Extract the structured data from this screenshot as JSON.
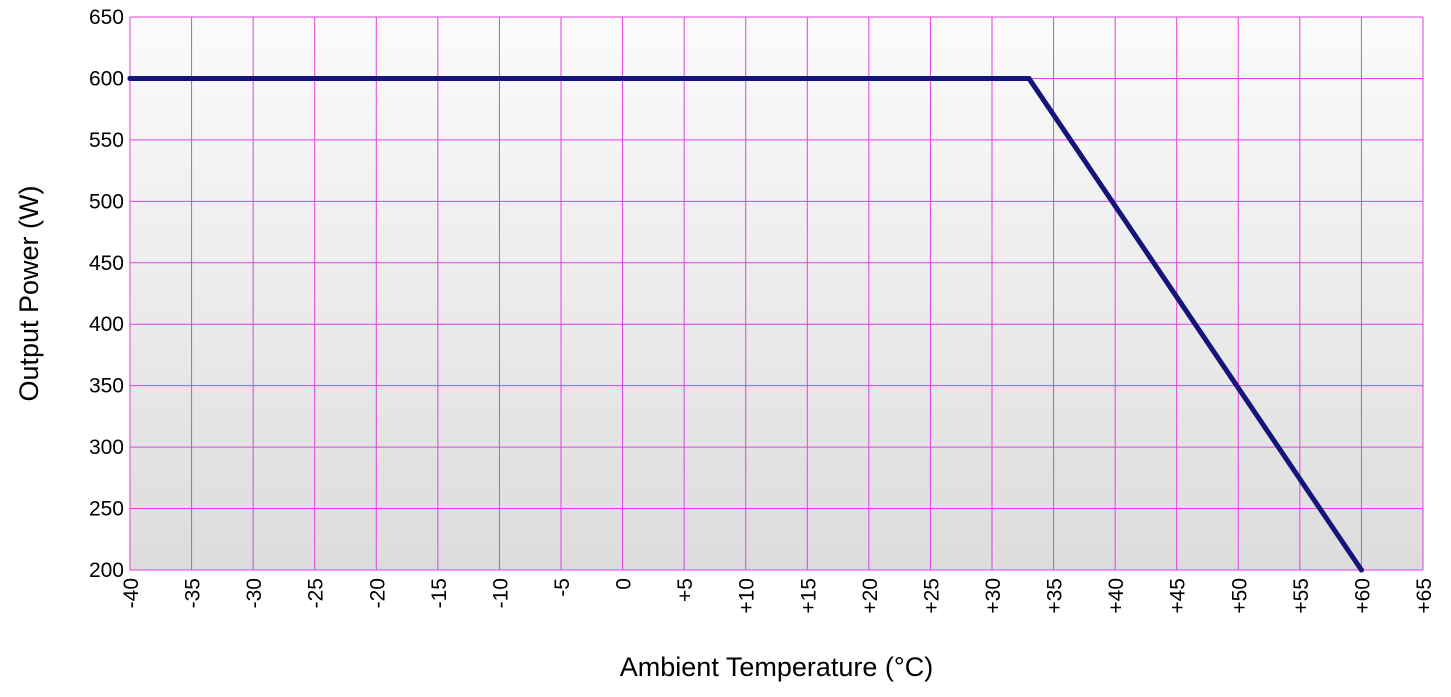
{
  "chart_data": {
    "type": "line",
    "xlabel": "Ambient Temperature (°C)",
    "ylabel": "Output Power (W)",
    "xlim": [
      -40,
      65
    ],
    "ylim": [
      200,
      650
    ],
    "x_ticks": [
      {
        "value": -40,
        "label": "-40"
      },
      {
        "value": -35,
        "label": "-35"
      },
      {
        "value": -30,
        "label": "-30"
      },
      {
        "value": -25,
        "label": "-25"
      },
      {
        "value": -20,
        "label": "-20"
      },
      {
        "value": -15,
        "label": "-15"
      },
      {
        "value": -10,
        "label": "-10"
      },
      {
        "value": -5,
        "label": "-5"
      },
      {
        "value": 0,
        "label": "0"
      },
      {
        "value": 5,
        "label": "+5"
      },
      {
        "value": 10,
        "label": "+10"
      },
      {
        "value": 15,
        "label": "+15"
      },
      {
        "value": 20,
        "label": "+20"
      },
      {
        "value": 25,
        "label": "+25"
      },
      {
        "value": 30,
        "label": "+30"
      },
      {
        "value": 35,
        "label": "+35"
      },
      {
        "value": 40,
        "label": "+40"
      },
      {
        "value": 45,
        "label": "+45"
      },
      {
        "value": 50,
        "label": "+50"
      },
      {
        "value": 55,
        "label": "+55"
      },
      {
        "value": 60,
        "label": "+60"
      },
      {
        "value": 65,
        "label": "+65"
      }
    ],
    "y_ticks": [
      {
        "value": 200,
        "label": "200"
      },
      {
        "value": 250,
        "label": "250"
      },
      {
        "value": 300,
        "label": "300"
      },
      {
        "value": 350,
        "label": "350"
      },
      {
        "value": 400,
        "label": "400"
      },
      {
        "value": 450,
        "label": "450"
      },
      {
        "value": 500,
        "label": "500"
      },
      {
        "value": 550,
        "label": "550"
      },
      {
        "value": 600,
        "label": "600"
      },
      {
        "value": 650,
        "label": "650"
      }
    ],
    "grid": true,
    "legend": "none",
    "series": [
      {
        "x": [
          -40,
          33,
          60
        ],
        "y": [
          600,
          600,
          200
        ],
        "color": "#14147a"
      }
    ],
    "colors": {
      "grid": "#e040e0",
      "line": "#14147a",
      "background_top": "#fbfbfb",
      "background_bottom": "#dcdcdc"
    }
  }
}
